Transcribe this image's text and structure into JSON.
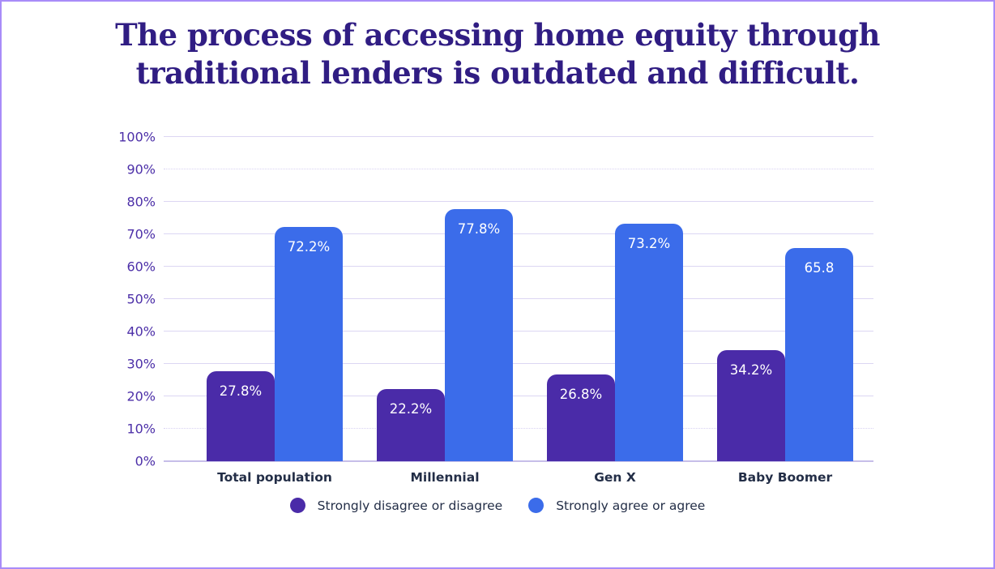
{
  "title": {
    "text": "The process of accessing home equity through traditional lenders is outdated and difficult.",
    "line1": "The process of accessing home equity through",
    "line2": "traditional lenders is outdated and difficult.",
    "color": "#301D83"
  },
  "chart_data": {
    "type": "bar",
    "title": "The process of accessing home equity through traditional lenders is outdated and difficult.",
    "categories": [
      "Total population",
      "Millennial",
      "Gen X",
      "Baby Boomer"
    ],
    "series": [
      {
        "name": "Strongly disagree or disagree",
        "color": "#4A2BA8",
        "values": [
          27.8,
          22.2,
          26.8,
          34.2
        ],
        "bar_labels": [
          "27.8%",
          "22.2%",
          "26.8%",
          "34.2%"
        ]
      },
      {
        "name": "Strongly agree or agree",
        "color": "#3B6CEA",
        "values": [
          72.2,
          77.8,
          73.2,
          65.8
        ],
        "bar_labels": [
          "72.2%",
          "77.8%",
          "73.2%",
          "65.8"
        ]
      }
    ],
    "xlabel": "",
    "ylabel": "",
    "ylim": [
      0,
      100
    ],
    "ytick_interval": 10,
    "ytick_labels": [
      "0%",
      "10%",
      "20%",
      "30%",
      "40%",
      "50%",
      "60%",
      "70%",
      "80%",
      "90%",
      "100%"
    ],
    "dotted_gridline_values": [
      10,
      90
    ],
    "grid": true,
    "legend_position": "bottom",
    "bar_value_label_color": "#FFFFFF"
  },
  "colors": {
    "frame_border": "#A88CF8",
    "background": "#FFFFFF",
    "title_text": "#301D83",
    "ytick_text": "#4C2FA8",
    "category_label_text": "#232E47",
    "legend_text": "#232E47",
    "gridline": "#DCD6F3",
    "gridline_dotted": "#D8D1F2",
    "baseline": "#C6BEE9"
  }
}
